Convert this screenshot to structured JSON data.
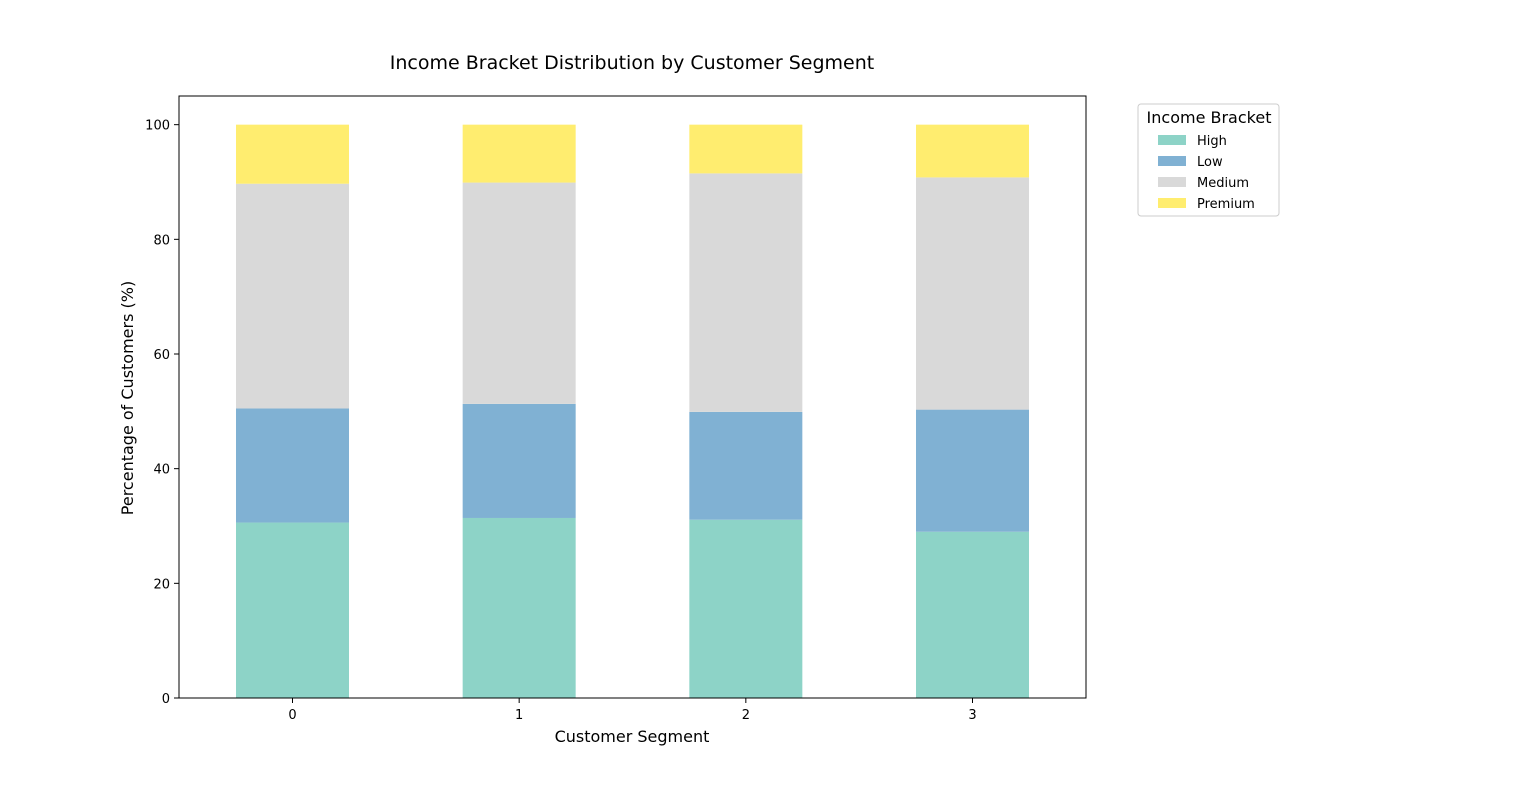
{
  "chart_data": {
    "type": "bar",
    "stacked": true,
    "title": "Income Bracket Distribution by Customer Segment",
    "xlabel": "Customer Segment",
    "ylabel": "Percentage of Customers (%)",
    "categories": [
      "0",
      "1",
      "2",
      "3"
    ],
    "ylim": [
      0,
      105
    ],
    "yticks": [
      0,
      20,
      40,
      60,
      80,
      100
    ],
    "grid": false,
    "legend": {
      "title": "Income Bracket",
      "placement": "outside-right-top"
    },
    "series": [
      {
        "name": "High",
        "color": "#8dd3c7",
        "values": [
          30.6,
          31.4,
          31.1,
          29.0
        ]
      },
      {
        "name": "Low",
        "color": "#80b1d3",
        "values": [
          19.9,
          19.9,
          18.8,
          21.3
        ]
      },
      {
        "name": "Medium",
        "color": "#d9d9d9",
        "values": [
          39.2,
          38.6,
          41.6,
          40.5
        ]
      },
      {
        "name": "Premium",
        "color": "#ffed6f",
        "values": [
          10.3,
          10.1,
          8.5,
          9.2
        ]
      }
    ]
  }
}
